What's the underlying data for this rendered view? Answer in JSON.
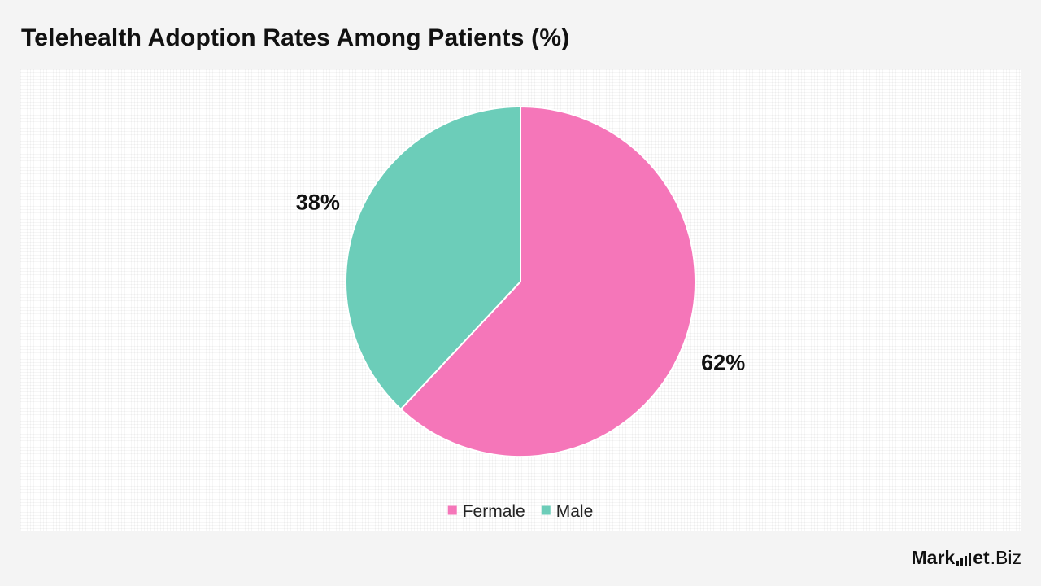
{
  "chart_data": {
    "type": "pie",
    "title": "Telehealth Adoption Rates Among Patients (%)",
    "categories": [
      "Fermale",
      "Male"
    ],
    "values": [
      62,
      38
    ],
    "value_labels": [
      "62%",
      "38%"
    ],
    "colors": [
      "#f576b9",
      "#6ccdb9"
    ],
    "start_angle_deg": 0,
    "direction": "clockwise",
    "legend_position": "bottom-center"
  },
  "brand": {
    "name_part1": "Mark",
    "name_part2": "et",
    "name_part3": ".Biz",
    "logo_icon": "bar-chart-icon"
  }
}
